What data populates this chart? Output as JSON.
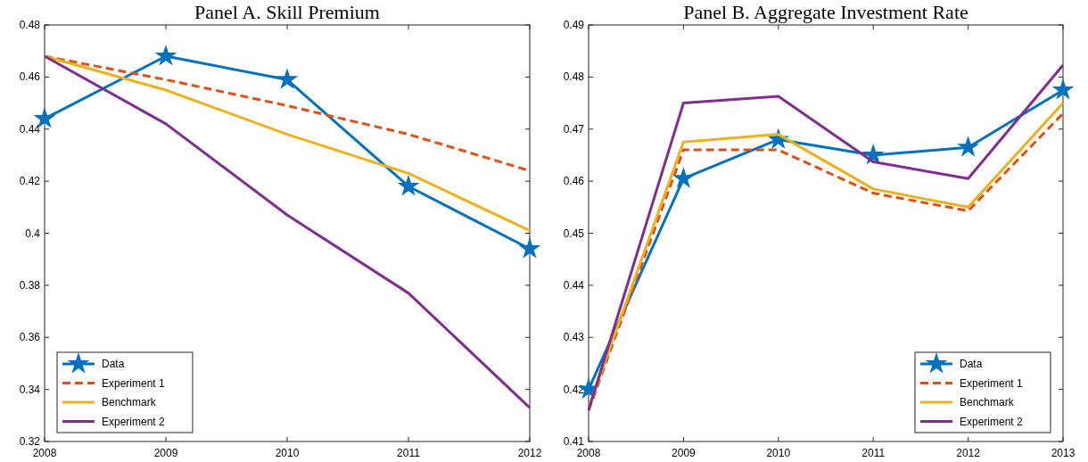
{
  "chart_data": [
    {
      "type": "line",
      "title": "Panel A. Skill Premium",
      "x": [
        2008,
        2009,
        2010,
        2011,
        2012
      ],
      "xlim": [
        2008,
        2012
      ],
      "xticks": [
        2008,
        2009,
        2010,
        2011,
        2012
      ],
      "ylim": [
        0.32,
        0.48
      ],
      "yticks": [
        0.32,
        0.34,
        0.36,
        0.38,
        0.4,
        0.42,
        0.44,
        0.46,
        0.48
      ],
      "grid": false,
      "legend": "bottom left",
      "series": [
        {
          "name": "Data",
          "color": "#0072bd",
          "values": [
            0.444,
            0.468,
            0.459,
            0.418,
            0.394
          ],
          "marker": "star",
          "line_style": "solid"
        },
        {
          "name": "Experiment 1",
          "color": "#d95319",
          "values": [
            0.468,
            0.459,
            0.449,
            0.438,
            0.424
          ],
          "marker": "none",
          "line_style": "dashed"
        },
        {
          "name": "Benchmark",
          "color": "#edb120",
          "values": [
            0.468,
            0.455,
            0.438,
            0.423,
            0.401
          ],
          "marker": "none",
          "line_style": "solid"
        },
        {
          "name": "Experiment 2",
          "color": "#7e2f8e",
          "values": [
            0.468,
            0.442,
            0.407,
            0.377,
            0.333
          ],
          "marker": "none",
          "line_style": "solid"
        }
      ]
    },
    {
      "type": "line",
      "title": "Panel B. Aggregate Investment Rate",
      "x": [
        2008,
        2009,
        2010,
        2011,
        2012,
        2013
      ],
      "xlim": [
        2008,
        2013
      ],
      "xticks": [
        2008,
        2009,
        2010,
        2011,
        2012,
        2013
      ],
      "ylim": [
        0.41,
        0.49
      ],
      "yticks": [
        0.41,
        0.42,
        0.43,
        0.44,
        0.45,
        0.46,
        0.47,
        0.48,
        0.49
      ],
      "grid": false,
      "legend": "bottom right",
      "series": [
        {
          "name": "Data",
          "color": "#0072bd",
          "values": [
            0.42,
            0.4605,
            0.468,
            0.465,
            0.4665,
            0.4775
          ],
          "marker": "star",
          "line_style": "solid"
        },
        {
          "name": "Experiment 1",
          "color": "#d95319",
          "values": [
            0.416,
            0.466,
            0.466,
            0.4577,
            0.4543,
            0.473
          ],
          "marker": "none",
          "line_style": "dashed"
        },
        {
          "name": "Benchmark",
          "color": "#edb120",
          "values": [
            0.4165,
            0.4675,
            0.469,
            0.4585,
            0.455,
            0.475
          ],
          "marker": "none",
          "line_style": "solid"
        },
        {
          "name": "Experiment 2",
          "color": "#7e2f8e",
          "values": [
            0.416,
            0.475,
            0.4763,
            0.4637,
            0.4605,
            0.4823
          ],
          "marker": "none",
          "line_style": "solid"
        }
      ]
    }
  ]
}
